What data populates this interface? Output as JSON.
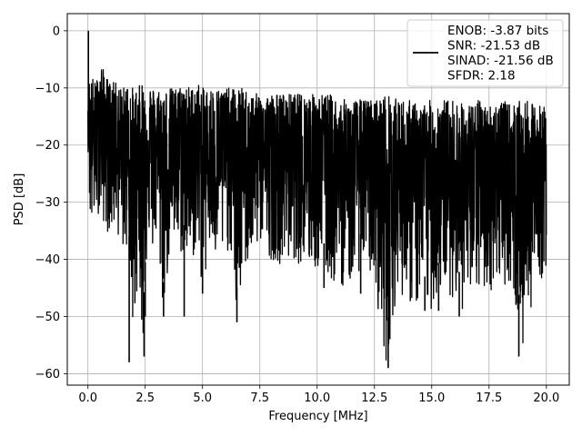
{
  "chart_data": {
    "type": "line",
    "xlabel": "Frequency [MHz]",
    "ylabel": "PSD [dB]",
    "xlim": [
      -0.9,
      21.0
    ],
    "ylim": [
      -62.0,
      3.0
    ],
    "xticks": [
      0.0,
      2.5,
      5.0,
      7.5,
      10.0,
      12.5,
      15.0,
      17.5,
      20.0
    ],
    "xtick_labels": [
      "0.0",
      "2.5",
      "5.0",
      "7.5",
      "10.0",
      "12.5",
      "15.0",
      "17.5",
      "20.0"
    ],
    "yticks": [
      0,
      -10,
      -20,
      -30,
      -40,
      -50,
      -60
    ],
    "ytick_labels": [
      "0",
      "−10",
      "−20",
      "−30",
      "−40",
      "−50",
      "−60"
    ],
    "grid": true,
    "legend_position": "top-right",
    "series": [
      {
        "name": "",
        "color": "#000000",
        "legend_lines": [
          "ENOB: -3.87 bits",
          "SNR: -21.53 dB",
          "SINAD: -21.56 dB",
          "SFDR: 2.18"
        ],
        "x": [
          0.0,
          0.02,
          0.05,
          0.1,
          0.2,
          0.3,
          0.45,
          0.6,
          0.8,
          1.0,
          1.2,
          1.5,
          1.75,
          2.0,
          2.2,
          2.4,
          2.6,
          2.8,
          3.0,
          3.3,
          3.6,
          3.9,
          4.2,
          4.5,
          4.8,
          5.0,
          5.3,
          5.6,
          5.9,
          6.2,
          6.5,
          6.8,
          7.1,
          7.5,
          8.0,
          8.5,
          9.0,
          9.5,
          10.0,
          10.5,
          11.0,
          11.5,
          12.0,
          12.5,
          13.0,
          13.5,
          14.0,
          14.5,
          15.0,
          15.5,
          16.0,
          16.5,
          17.0,
          17.5,
          18.0,
          18.5,
          19.0,
          19.5,
          20.0
        ],
        "upper": [
          -14,
          0,
          -8,
          -9,
          -8,
          -9,
          -8,
          -6,
          -8,
          -9,
          -9,
          -10,
          -9,
          -10,
          -10,
          -8,
          -9,
          -10,
          -10,
          -10,
          -10,
          -10,
          -9,
          -10,
          -9,
          -10,
          -10,
          -10,
          -10,
          -10,
          -10,
          -10,
          -11,
          -11,
          -11,
          -11,
          -11,
          -11,
          -11,
          -11,
          -12,
          -12,
          -12,
          -12,
          -11,
          -12,
          -12,
          -13,
          -12,
          -12,
          -12,
          -13,
          -12,
          -13,
          -12,
          -13,
          -12,
          -13,
          -13
        ],
        "lower": [
          -22,
          -20,
          -30,
          -34,
          -36,
          -33,
          -32,
          -33,
          -35,
          -36,
          -34,
          -39,
          -38,
          -58,
          -39,
          -57,
          -36,
          -39,
          -37,
          -50,
          -38,
          -39,
          -40,
          -41,
          -38,
          -46,
          -39,
          -41,
          -40,
          -38,
          -51,
          -42,
          -41,
          -37,
          -40,
          -41,
          -40,
          -42,
          -42,
          -44,
          -45,
          -44,
          -41,
          -44,
          -59,
          -45,
          -48,
          -49,
          -49,
          -45,
          -47,
          -50,
          -46,
          -46,
          -44,
          -45,
          -57,
          -44,
          -43
        ],
        "dips": [
          {
            "x": 1.8,
            "y": -58
          },
          {
            "x": 2.45,
            "y": -57
          },
          {
            "x": 2.5,
            "y": -50
          },
          {
            "x": 3.3,
            "y": -50
          },
          {
            "x": 4.2,
            "y": -50
          },
          {
            "x": 5.0,
            "y": -46
          },
          {
            "x": 6.5,
            "y": -51
          },
          {
            "x": 10.3,
            "y": -45
          },
          {
            "x": 11.9,
            "y": -46
          },
          {
            "x": 13.1,
            "y": -59
          },
          {
            "x": 14.7,
            "y": -49
          },
          {
            "x": 15.3,
            "y": -49
          },
          {
            "x": 16.2,
            "y": -50
          },
          {
            "x": 18.8,
            "y": -57
          }
        ]
      }
    ]
  }
}
